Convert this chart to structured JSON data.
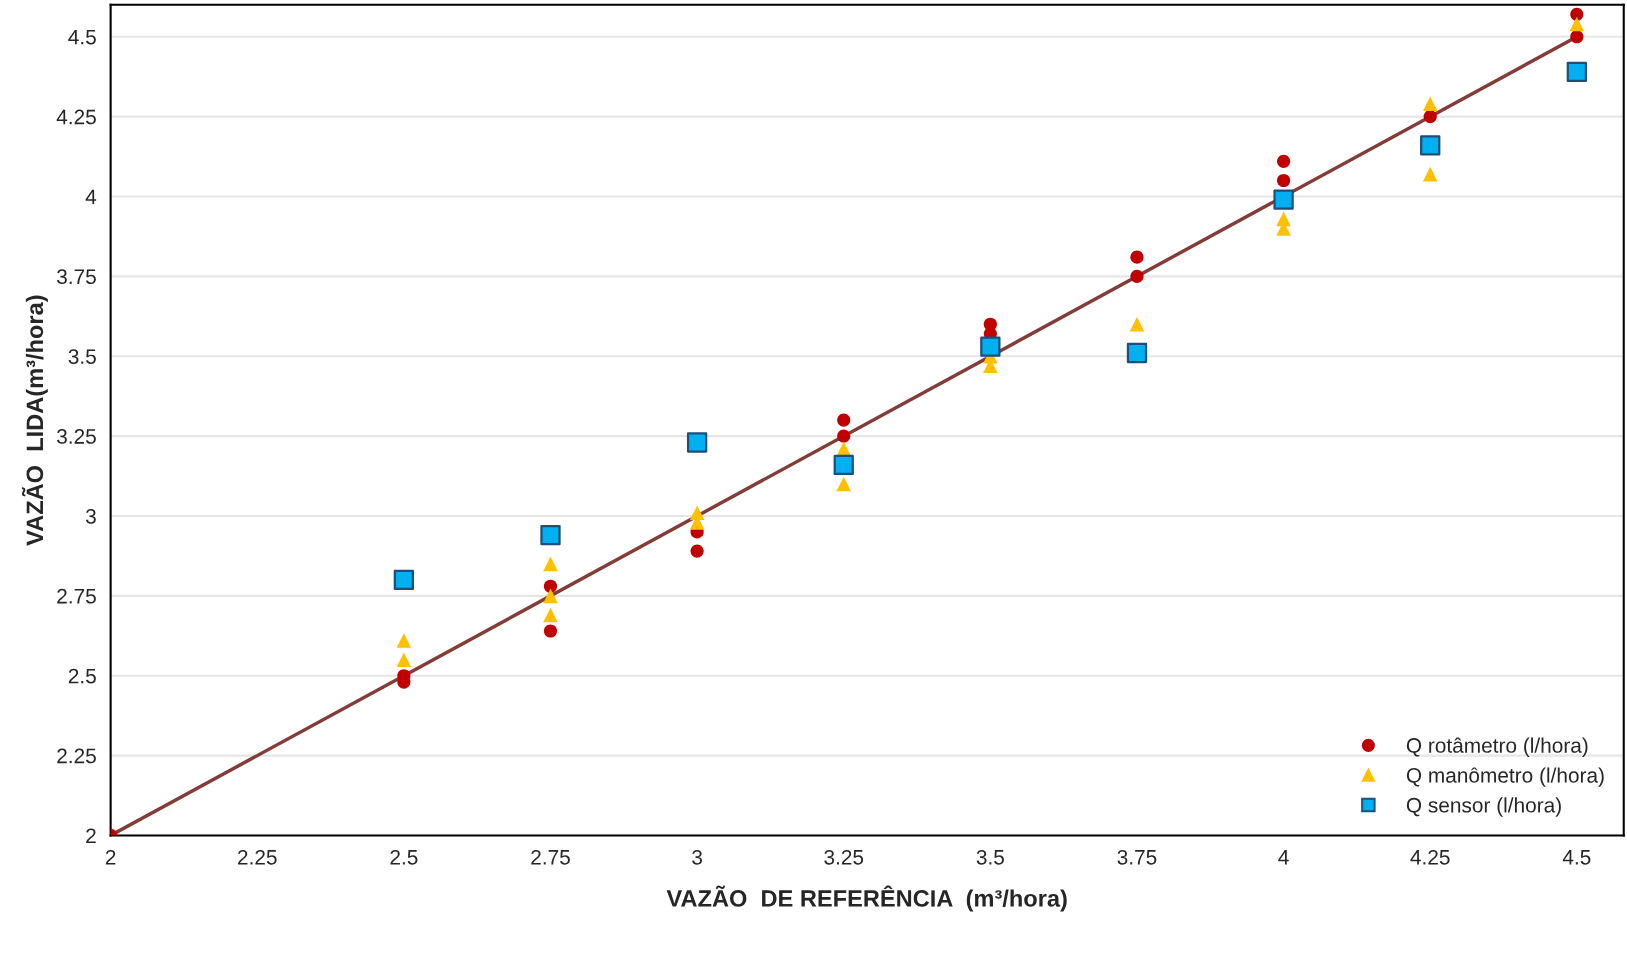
{
  "chart_data": {
    "type": "scatter",
    "xlabel": "VAZÃO  DE REFERÊNCIA  (m³/hora)",
    "ylabel": "VAZÃO  LIDA(m³/hora)",
    "xlim": [
      2,
      4.58
    ],
    "ylim": [
      2,
      4.6
    ],
    "xticks": [
      2,
      2.25,
      2.5,
      2.75,
      3,
      3.25,
      3.5,
      3.75,
      4,
      4.25,
      4.5
    ],
    "yticks": [
      2,
      2.25,
      2.5,
      2.75,
      3,
      3.25,
      3.5,
      3.75,
      4,
      4.25,
      4.5
    ],
    "grid": "y",
    "legend": "bottom right",
    "series": [
      {
        "type": "line",
        "color": "#843c39",
        "marker": "none",
        "line_style": "solid",
        "x": [
          2,
          4.5
        ],
        "values": [
          2,
          4.5
        ]
      },
      {
        "name": "Q rotâmetro (l/hora)",
        "color": "#c00000",
        "marker": "circle",
        "x": [
          2,
          2.5,
          2.5,
          2.75,
          2.75,
          3,
          3,
          3.25,
          3.25,
          3.5,
          3.5,
          3.75,
          3.75,
          4,
          4,
          4.25,
          4.5,
          4.5
        ],
        "values": [
          2,
          2.48,
          2.5,
          2.78,
          2.64,
          2.95,
          2.89,
          3.3,
          3.25,
          3.6,
          3.57,
          3.81,
          3.75,
          4.11,
          4.05,
          4.25,
          4.57,
          4.5
        ]
      },
      {
        "name": "Q manômetro (l/hora)",
        "color": "#ffc000",
        "marker": "triangle",
        "x": [
          2.5,
          2.5,
          2.75,
          2.75,
          2.75,
          3,
          3,
          3.25,
          3.25,
          3.5,
          3.5,
          3.75,
          4,
          4,
          4.25,
          4.25,
          4.5
        ],
        "values": [
          2.61,
          2.55,
          2.85,
          2.75,
          2.69,
          3.01,
          2.98,
          3.21,
          3.1,
          3.5,
          3.47,
          3.6,
          3.93,
          3.9,
          4.29,
          4.07,
          4.54
        ]
      },
      {
        "name": "Q sensor (l/hora)",
        "color": "#00b0f0",
        "marker": "square",
        "x": [
          2.5,
          2.75,
          3,
          3.25,
          3.5,
          3.75,
          4,
          4.25,
          4.5
        ],
        "values": [
          2.8,
          2.94,
          3.23,
          3.16,
          3.53,
          3.51,
          3.99,
          4.16,
          4.39
        ]
      }
    ]
  }
}
